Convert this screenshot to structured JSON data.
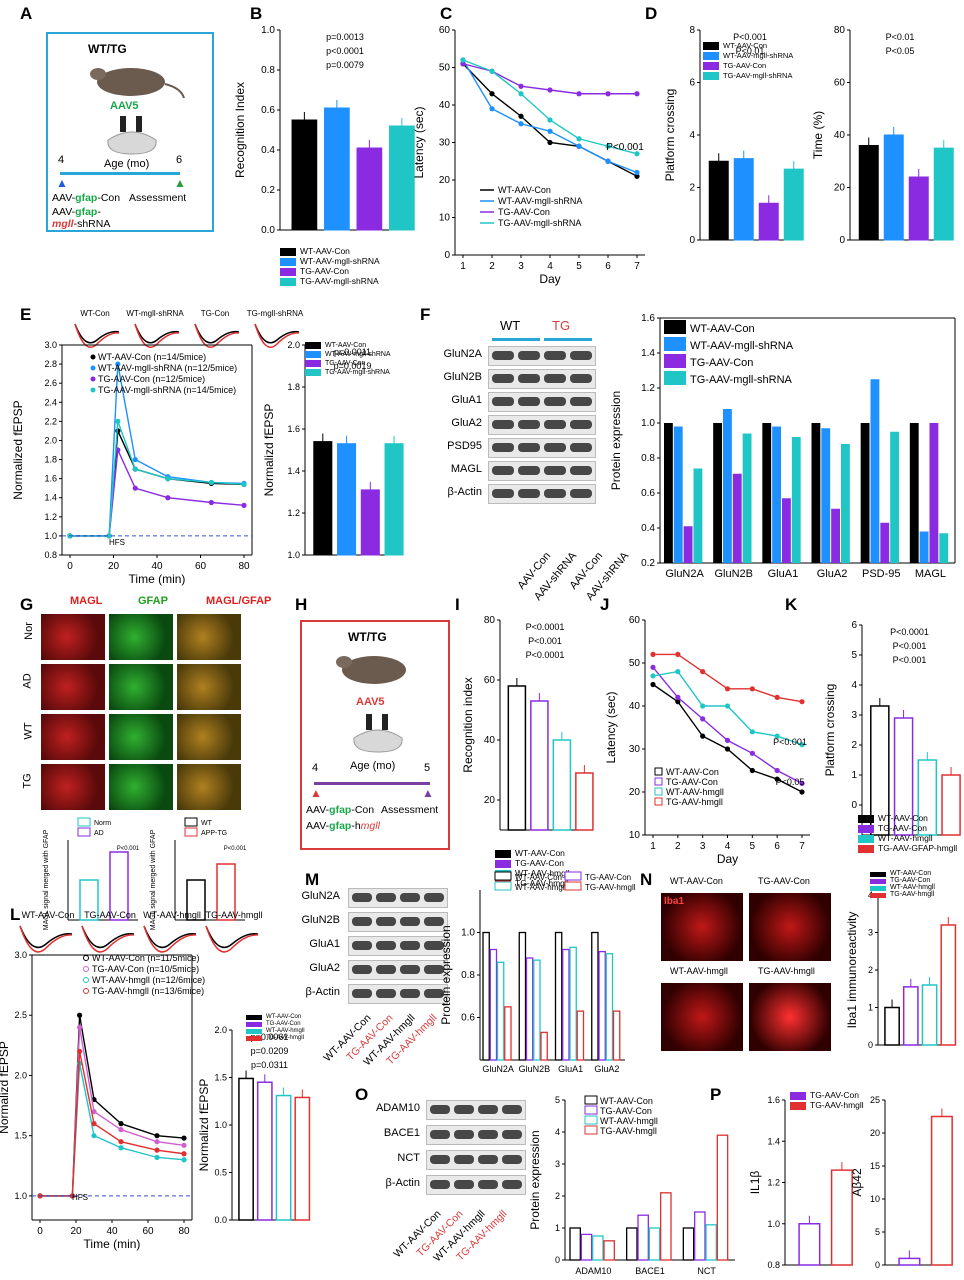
{
  "colors": {
    "wt_con": "#000000",
    "wt_shrna": "#1e90ff",
    "tg_con": "#8a2be2",
    "tg_shrna": "#20c6c6",
    "red": "#e03030",
    "cyan": "#2aa7d9"
  },
  "panel_labels": {
    "A": "A",
    "B": "B",
    "C": "C",
    "D": "D",
    "E": "E",
    "F": "F",
    "G": "G",
    "H": "H",
    "I": "I",
    "J": "J",
    "K": "K",
    "L": "L",
    "M": "M",
    "N": "N",
    "O": "O",
    "P": "P"
  },
  "panelA": {
    "title": "WT/TG",
    "virus": "AAV5",
    "age": "Age (mo)",
    "t1": "4",
    "t2": "6",
    "line1a": "AAV-",
    "line1b": "gfap",
    "line1c": "-Con",
    "assessment": "Assessment",
    "line2a": "AAV-",
    "line2b": "gfap",
    "line2c": "-",
    "line3a": "mgll",
    "line3b": "-shRNA"
  },
  "panelH": {
    "title": "WT/TG",
    "virus": "AAV5",
    "age": "Age (mo)",
    "t1": "4",
    "t2": "5",
    "line1a": "AAV-",
    "line1b": "gfap",
    "line1c": "-Con",
    "assessment": "Assessment",
    "line2a": "AAV-",
    "line2b": "gfap",
    "line2c": "-h",
    "line2d": "mgll"
  },
  "legend4": [
    "WT-AAV-Con",
    "WT-AAV-mgll-shRNA",
    "TG-AAV-Con",
    "TG-AAV-mgll-shRNA"
  ],
  "legend4b": [
    "WT-AAV-Con",
    "TG-AAV-Con",
    "WT-AAV-hmgll",
    "TG-AAV-hmgll"
  ],
  "chart_data": [
    {
      "id": "B",
      "type": "bar",
      "ylabel": "Recognition Index",
      "ylim": [
        0,
        1.0
      ],
      "yticks": [
        "0.0",
        "0.2",
        "0.4",
        "0.6",
        "0.8",
        "1.0"
      ],
      "categories": [
        "WT-AAV-Con",
        "WT-AAV-mgll-shRNA",
        "TG-AAV-Con",
        "TG-AAV-mgll-shRNA"
      ],
      "values": [
        0.55,
        0.61,
        0.41,
        0.52
      ],
      "annotations": [
        "p=0.0013",
        "p<0.0001",
        "p=0.0079"
      ]
    },
    {
      "id": "C",
      "type": "line",
      "xlabel": "Day",
      "ylabel": "Latency (sec)",
      "ylim": [
        0,
        60
      ],
      "x": [
        1,
        2,
        3,
        4,
        5,
        6,
        7
      ],
      "yticks": [
        "0",
        "10",
        "20",
        "30",
        "40",
        "50",
        "60"
      ],
      "series": [
        {
          "name": "WT-AAV-Con",
          "values": [
            51,
            43,
            37,
            30,
            29,
            25,
            21
          ]
        },
        {
          "name": "WT-AAV-mgll-shRNA",
          "values": [
            52,
            39,
            35,
            33,
            29,
            25,
            22
          ]
        },
        {
          "name": "TG-AAV-Con",
          "values": [
            51,
            49,
            45,
            44,
            43,
            43,
            43
          ]
        },
        {
          "name": "TG-AAV-mgll-shRNA",
          "values": [
            52,
            49,
            43,
            36,
            31,
            29,
            27
          ]
        }
      ],
      "annotations": [
        "P<0.001"
      ]
    },
    {
      "id": "D1",
      "type": "bar",
      "ylabel": "Platform crossing",
      "ylim": [
        0,
        8
      ],
      "yticks": [
        "0",
        "2",
        "4",
        "6",
        "8"
      ],
      "categories": [
        "WT-AAV-Con",
        "WT-AAV-mgll-shRNA",
        "TG-AAV-Con",
        "TG-AAV-mgll-shRNA"
      ],
      "values": [
        3.0,
        3.1,
        1.4,
        2.7
      ],
      "annotations": [
        "P<0.001",
        "P<0.01"
      ]
    },
    {
      "id": "D2",
      "type": "bar",
      "ylabel": "Time (%)",
      "ylim": [
        0,
        80
      ],
      "yticks": [
        "0",
        "20",
        "40",
        "60",
        "80"
      ],
      "categories": [
        "WT-AAV-Con",
        "WT-AAV-mgll-shRNA",
        "TG-AAV-Con",
        "TG-AAV-mgll-shRNA"
      ],
      "values": [
        36,
        40,
        24,
        35
      ],
      "annotations": [
        "P<0.01",
        "P<0.05"
      ]
    },
    {
      "id": "E1",
      "type": "line",
      "xlabel": "Time (min)",
      "ylabel": "Normalized fEPSP",
      "ylim": [
        0.8,
        3.0
      ],
      "yticks": [
        "0.8",
        "1.0",
        "1.2",
        "1.4",
        "1.6",
        "1.8",
        "2.0",
        "2.2",
        "2.4",
        "2.6",
        "2.8",
        "3.0"
      ],
      "xticks": [
        "0",
        "20",
        "40",
        "60",
        "80"
      ],
      "series": [
        {
          "name": "WT-AAV-Con (n=14/5mice)",
          "values": [
            1.0,
            1.0,
            2.1,
            1.7,
            1.6,
            1.55,
            1.54
          ]
        },
        {
          "name": "WT-AAV-mgll-shRNA (n=12/5mice)",
          "values": [
            1.0,
            1.0,
            2.8,
            1.8,
            1.62,
            1.56,
            1.55
          ]
        },
        {
          "name": "TG-AAV-Con (n=12/5mice)",
          "values": [
            1.0,
            1.0,
            1.9,
            1.5,
            1.4,
            1.35,
            1.32
          ]
        },
        {
          "name": "TG-AAV-mgll-shRNA (n=14/5mice)",
          "values": [
            1.0,
            1.0,
            2.2,
            1.7,
            1.6,
            1.56,
            1.54
          ]
        }
      ],
      "x": [
        0,
        18,
        22,
        30,
        45,
        65,
        80
      ],
      "annotations": [
        "HFS"
      ]
    },
    {
      "id": "E2",
      "type": "bar",
      "ylabel": "Normalizd fEPSP",
      "ylim": [
        1.0,
        2.0
      ],
      "yticks": [
        "1.0",
        "1.2",
        "1.4",
        "1.6",
        "1.8",
        "2.0"
      ],
      "categories": [
        "WT-AAV-Con",
        "WT-AAV-mgll-shRNA",
        "TG-AAV-Con",
        "TG-AAV-mgll-shRNA"
      ],
      "values": [
        1.54,
        1.53,
        1.31,
        1.53
      ],
      "annotations": [
        "p=0.0011",
        "p=0.0019"
      ]
    },
    {
      "id": "F",
      "type": "bar",
      "ylabel": "Protein expression",
      "ylim": [
        0.2,
        1.6
      ],
      "yticks": [
        "0.2",
        "0.4",
        "0.6",
        "0.8",
        "1.0",
        "1.2",
        "1.4",
        "1.6"
      ],
      "categories": [
        "GluN2A",
        "GluN2B",
        "GluA1",
        "GluA2",
        "PSD-95",
        "MAGL"
      ],
      "series": [
        {
          "name": "WT-AAV-Con",
          "values": [
            1.0,
            1.0,
            1.0,
            1.0,
            1.0,
            1.0
          ]
        },
        {
          "name": "WT-AAV-mgll-shRNA",
          "values": [
            0.98,
            1.08,
            0.98,
            0.97,
            1.25,
            0.38
          ]
        },
        {
          "name": "TG-AAV-Con",
          "values": [
            0.41,
            0.71,
            0.57,
            0.51,
            0.43,
            1.0
          ]
        },
        {
          "name": "TG-AAV-mgll-shRNA",
          "values": [
            0.74,
            0.94,
            0.92,
            0.88,
            0.95,
            0.37
          ]
        }
      ],
      "annotations": [
        "***",
        "§§",
        "**",
        "§§",
        "**",
        "§§",
        "**",
        "§§§",
        "**",
        "**",
        "§§",
        "**"
      ]
    },
    {
      "id": "G",
      "type": "bar",
      "series": [
        {
          "name": "Norm/AD",
          "categories": [
            "Norm",
            "AD"
          ],
          "values": [
            1.0,
            1.7
          ]
        },
        {
          "name": "WT/APP-TG",
          "categories": [
            "WT",
            "APP-TG"
          ],
          "values": [
            1.0,
            1.4
          ]
        }
      ],
      "ylabel": "MAGL signal merged with GFAP",
      "annotations": [
        "P<0.001",
        "P<0.001"
      ]
    },
    {
      "id": "I",
      "type": "bar",
      "ylabel": "Recognition index",
      "ylim": [
        10,
        80
      ],
      "yticks": [
        "20",
        "40",
        "60",
        "80"
      ],
      "categories": [
        "WT-AAV-Con",
        "TG-AAV-Con",
        "WT-AAV-hmgll",
        "TG-AAV-hmgll"
      ],
      "values": [
        58,
        53,
        40,
        29
      ],
      "annotations": [
        "P<0.0001",
        "P<0.001",
        "P<0.0001"
      ]
    },
    {
      "id": "J",
      "type": "line",
      "xlabel": "Day",
      "ylabel": "Latency (sec)",
      "ylim": [
        10,
        60
      ],
      "x": [
        1,
        2,
        3,
        4,
        5,
        6,
        7
      ],
      "yticks": [
        "10",
        "20",
        "30",
        "40",
        "50",
        "60"
      ],
      "series": [
        {
          "name": "WT-AAV-Con",
          "values": [
            45,
            41,
            33,
            30,
            25,
            23,
            20
          ]
        },
        {
          "name": "TG-AAV-Con",
          "values": [
            49,
            42,
            37,
            32,
            29,
            25,
            22
          ]
        },
        {
          "name": "WT-AAV-hmgll",
          "values": [
            47,
            48,
            40,
            40,
            34,
            33,
            31
          ]
        },
        {
          "name": "TG-AAV-hmgll",
          "values": [
            52,
            52,
            48,
            44,
            44,
            42,
            41
          ]
        }
      ],
      "annotations": [
        "P<0.001",
        "P<0.05"
      ]
    },
    {
      "id": "K",
      "type": "bar",
      "ylabel": "Platform crossing",
      "ylim": [
        -1,
        6
      ],
      "yticks": [
        "0",
        "1",
        "2",
        "3",
        "4",
        "5",
        "6"
      ],
      "categories": [
        "WT-AAV-Con",
        "TG-AAV-Con",
        "WT-AAV-hmgll",
        "TG-AAV-GFAP-hmgll"
      ],
      "values": [
        3.3,
        2.9,
        1.5,
        1.0
      ],
      "annotations": [
        "P<0.0001",
        "P<0.001",
        "P<0.001"
      ]
    },
    {
      "id": "L1",
      "type": "line",
      "xlabel": "Time (min)",
      "ylabel": "Normalizd fEPSP",
      "ylim": [
        0.8,
        3.0
      ],
      "yticks": [
        "1.0",
        "1.5",
        "2.0",
        "2.5",
        "3.0"
      ],
      "xticks": [
        "0",
        "20",
        "40",
        "60",
        "80"
      ],
      "series": [
        {
          "name": "WT-AAV-Con (n=11/5mice)",
          "values": [
            1.0,
            1.0,
            2.5,
            1.8,
            1.6,
            1.5,
            1.48
          ]
        },
        {
          "name": "TG-AAV-Con (n=10/5mice)",
          "values": [
            1.0,
            1.0,
            2.4,
            1.7,
            1.55,
            1.45,
            1.42
          ]
        },
        {
          "name": "WT-AAV-hmgll (n=12/6mice)",
          "values": [
            1.0,
            1.0,
            2.1,
            1.5,
            1.4,
            1.32,
            1.3
          ]
        },
        {
          "name": "TG-AAV-hmgll (n=13/6mice)",
          "values": [
            1.0,
            1.0,
            2.2,
            1.6,
            1.45,
            1.38,
            1.35
          ]
        }
      ],
      "x": [
        0,
        18,
        22,
        30,
        45,
        65,
        80
      ],
      "annotations": [
        "HFS",
        "1",
        "2"
      ]
    },
    {
      "id": "L2",
      "type": "bar",
      "ylabel": "Normalizd fEPSP",
      "ylim": [
        0.0,
        2.0
      ],
      "yticks": [
        "0.0",
        "0.5",
        "1.0",
        "1.5",
        "2.0"
      ],
      "categories": [
        "WT-AAV-Con",
        "TG-AAV-Con",
        "WT-AAV-hmgll",
        "TG-AAV-hmgll"
      ],
      "values": [
        1.49,
        1.45,
        1.31,
        1.29
      ],
      "annotations": [
        "p=0.0061",
        "p=0.0209",
        "p=0.0311"
      ]
    },
    {
      "id": "M",
      "type": "bar",
      "ylabel": "Protein expression",
      "ylim": [
        0.4,
        1.2
      ],
      "yticks": [
        "0.6",
        "0.8",
        "1.0"
      ],
      "categories": [
        "GluN2A",
        "GluN2B",
        "GluA1",
        "GluA2"
      ],
      "series": [
        {
          "name": "WT-AAV-Con",
          "values": [
            1.0,
            1.0,
            1.0,
            1.0
          ]
        },
        {
          "name": "TG-AAV-Con",
          "values": [
            0.92,
            0.88,
            0.92,
            0.91
          ]
        },
        {
          "name": "WT-AAV-hmgll",
          "values": [
            0.86,
            0.87,
            0.93,
            0.9
          ]
        },
        {
          "name": "TG-AAV-hmgll",
          "values": [
            0.65,
            0.53,
            0.63,
            0.63
          ]
        }
      ]
    },
    {
      "id": "N",
      "type": "bar",
      "ylabel": "Iba1 immunoreactivity",
      "ylim": [
        0,
        4
      ],
      "yticks": [
        "0",
        "1",
        "2",
        "3",
        "4"
      ],
      "categories": [
        "WT-AAV-Con",
        "TG-AAV-Con",
        "WT-AAV-hmgll",
        "TG-AAV-hmgll"
      ],
      "values": [
        1.0,
        1.55,
        1.6,
        3.2
      ]
    },
    {
      "id": "O",
      "type": "bar",
      "ylabel": "Protein expression",
      "ylim": [
        0,
        5
      ],
      "yticks": [
        "0",
        "1",
        "2",
        "3",
        "4",
        "5"
      ],
      "categories": [
        "ADAM10",
        "BACE1",
        "NCT"
      ],
      "series": [
        {
          "name": "WT-AAV-Con",
          "values": [
            1.0,
            1.0,
            1.0
          ]
        },
        {
          "name": "TG-AAV-Con",
          "values": [
            0.8,
            1.4,
            1.5
          ]
        },
        {
          "name": "WT-AAV-hmgll",
          "values": [
            0.75,
            1.0,
            1.1
          ]
        },
        {
          "name": "TG-AAV-hmgll",
          "values": [
            0.6,
            2.1,
            3.9
          ]
        }
      ]
    },
    {
      "id": "P1",
      "type": "bar",
      "ylabel": "IL1β",
      "ylim": [
        0.8,
        1.6
      ],
      "yticks": [
        "0.8",
        "1.0",
        "1.2",
        "1.4",
        "1.6"
      ],
      "categories": [
        "TG-AAV-Con",
        "TG-AAV-hmgll"
      ],
      "values": [
        1.0,
        1.26
      ]
    },
    {
      "id": "P2",
      "type": "bar",
      "ylabel": "Aβ42",
      "ylim": [
        0,
        25
      ],
      "yticks": [
        "0",
        "5",
        "10",
        "15",
        "20",
        "25"
      ],
      "categories": [
        "TG-AAV-Con",
        "TG-AAV-hmgll"
      ],
      "values": [
        1.0,
        22.5
      ]
    }
  ],
  "blotsF": {
    "groups": [
      "WT",
      "TG"
    ],
    "rows": [
      "GluN2A",
      "GluN2B",
      "GluA1",
      "GluA2",
      "PSD95",
      "MAGL",
      "β-Actin"
    ],
    "lanes": [
      "AAV-Con",
      "AAV-shRNA",
      "AAV-Con",
      "AAV-shRNA"
    ]
  },
  "blotsM": {
    "rows": [
      "GluN2A",
      "GluN2B",
      "GluA1",
      "GluA2",
      "β-Actin"
    ],
    "lanes": [
      "WT-AAV-Con",
      "TG-AAV-Con",
      "WT-AAV-hmgll",
      "TG-AAV-hmgll"
    ]
  },
  "blotsO": {
    "rows": [
      "ADAM10",
      "BACE1",
      "NCT",
      "β-Actin"
    ],
    "lanes": [
      "WT-AAV-Con",
      "TG-AAV-Con",
      "WT-AAV-hmgll",
      "TG-AAV-hmgll"
    ]
  },
  "panelG": {
    "cols": [
      "MAGL",
      "GFAP",
      "MAGL/GFAP"
    ],
    "rows": [
      "Nor",
      "AD",
      "WT",
      "TG"
    ]
  },
  "panelN": {
    "labels": [
      "WT-AAV-Con",
      "TG-AAV-Con",
      "WT-AAV-hmgll",
      "TG-AAV-hmgll"
    ],
    "stain": "Iba1"
  },
  "traces": {
    "E": [
      "WT-Con",
      "WT-mgll-shRNA",
      "TG-Con",
      "TG-mgll-shRNA"
    ],
    "L": [
      "WT-AAV-Con",
      "TG-AAV-Con",
      "WT-AAV-hmgll",
      "TG-AAV-hmgll"
    ]
  }
}
